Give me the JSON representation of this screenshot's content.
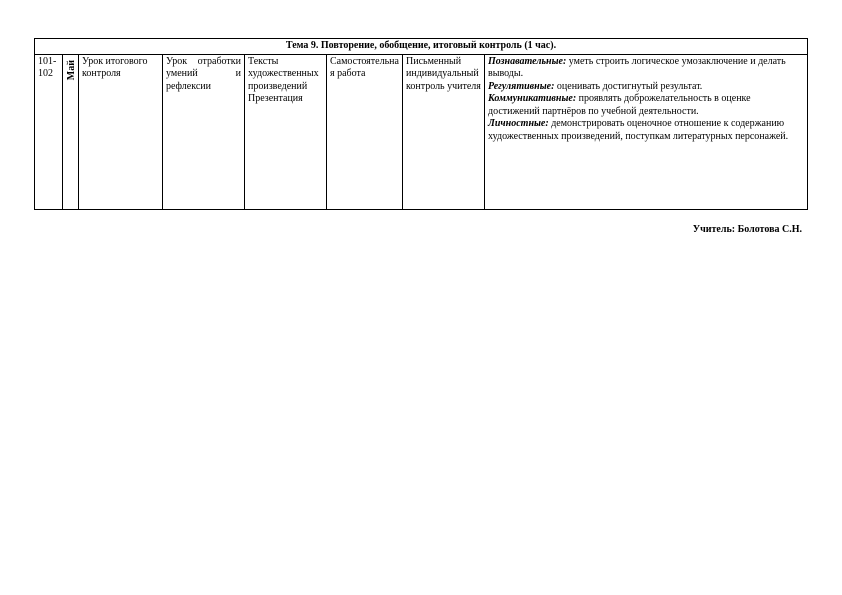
{
  "header": "Тема 9. Повторение, обобщение, итоговый контроль (1 час).",
  "row": {
    "c1": "101-102",
    "c2": "Май",
    "c3": " Урок итогового контроля",
    "c4": "Урок отработки умений и рефлексии",
    "c5": "Тексты художественных произведений Презентация",
    "c6": "Самостоятельная работа",
    "c7": "Письменный индивидуальный контроль учителя",
    "uud": {
      "poz_l": "Познавательные:",
      "poz_t": " уметь строить логическое умозаключение и делать выводы.",
      "reg_l": "Регулятивные:",
      "reg_t": " оценивать достигнутый результат.",
      "kom_l": "Коммуникативные:",
      "kom_t": " проявлять доброжелательность в оценке достижений партнёров по учебной деятельности.",
      "lich_l": "Личностные:",
      "lich_t": " демонстрировать оценочное отношение к содержанию художественных произведений, поступкам литературных персонажей."
    }
  },
  "teacher": "Учитель: Болотова С.Н.",
  "colwidths": [
    "28px",
    "16px",
    "84px",
    "82px",
    "82px",
    "76px",
    "82px",
    "auto"
  ]
}
